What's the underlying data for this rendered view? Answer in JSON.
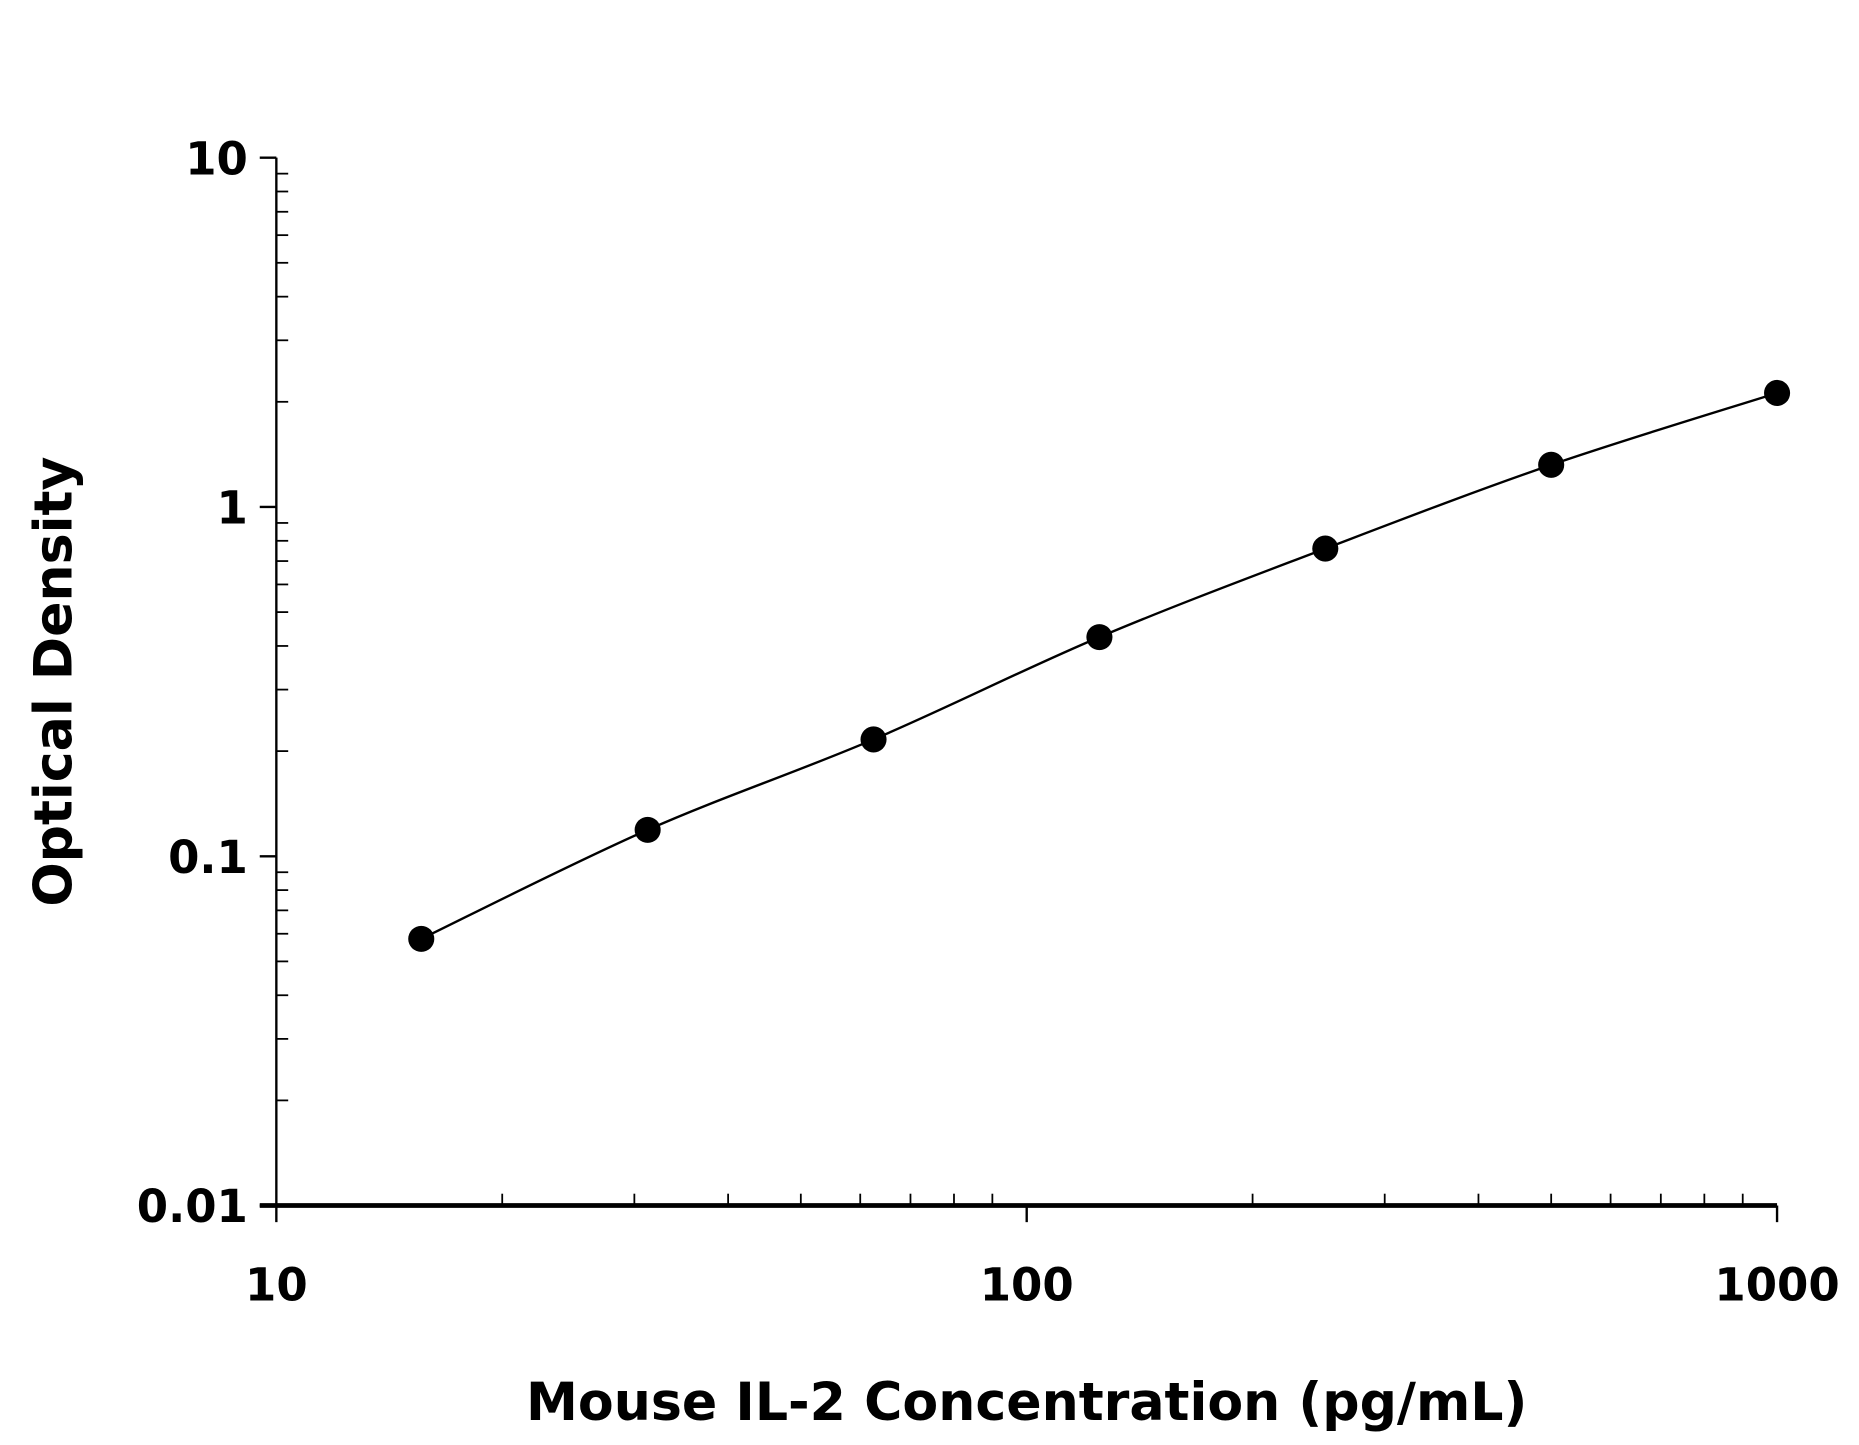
{
  "chart_data": {
    "type": "scatter",
    "title": "",
    "xlabel": "Mouse IL-2 Concentration (pg/mL)",
    "ylabel": "Optical Density",
    "xscale": "log",
    "yscale": "log",
    "xlim": [
      10,
      1000
    ],
    "ylim": [
      0.01,
      10
    ],
    "x_ticks": [
      "10",
      "100",
      "1000"
    ],
    "y_ticks": [
      "0.01",
      "0.1",
      "1",
      "10"
    ],
    "grid": false,
    "fit_line": true,
    "marker_color": "#000000",
    "points": [
      {
        "x": 15.6,
        "y": 0.058
      },
      {
        "x": 31.25,
        "y": 0.119
      },
      {
        "x": 62.5,
        "y": 0.216
      },
      {
        "x": 125,
        "y": 0.424
      },
      {
        "x": 250,
        "y": 0.76
      },
      {
        "x": 500,
        "y": 1.32
      },
      {
        "x": 1000,
        "y": 2.12
      }
    ]
  }
}
